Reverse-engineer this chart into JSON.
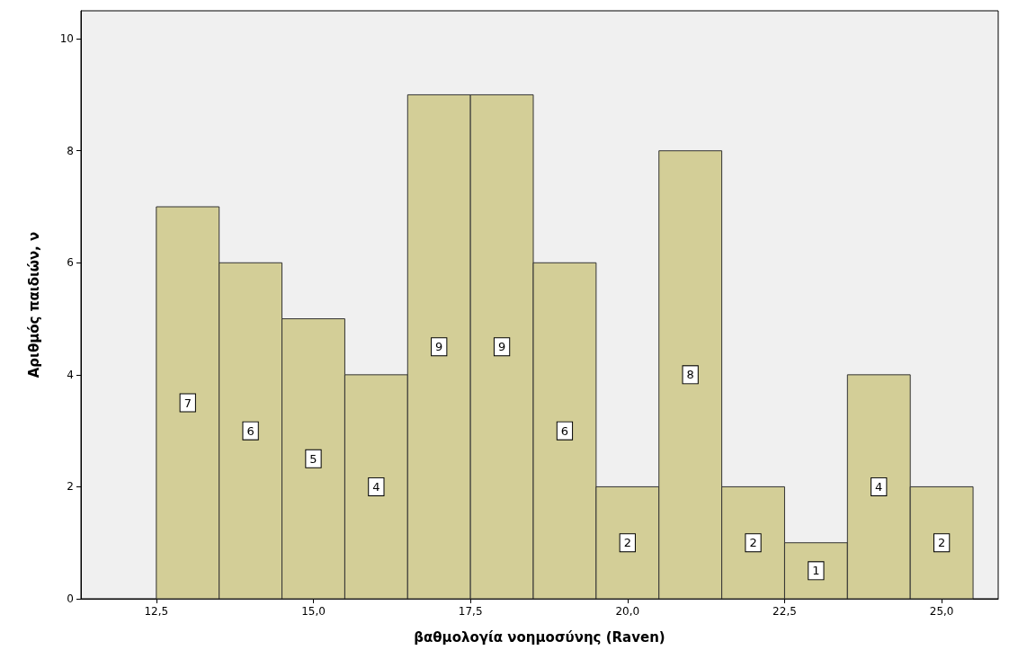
{
  "chart_data": {
    "type": "histogram",
    "xlabel": "βαθμολογία νοημοσύνης (Raven)",
    "ylabel": "Αριθμός παιδιών, ν",
    "bins": [
      12.5,
      13.5,
      14.5,
      15.5,
      16.5,
      17.5,
      18.5,
      19.5,
      20.5,
      21.5,
      22.5,
      23.5,
      24.5,
      25.5
    ],
    "values": [
      7,
      6,
      5,
      4,
      9,
      9,
      6,
      2,
      8,
      2,
      1,
      4,
      2
    ],
    "color": "#d3ce97",
    "xlim": [
      11.3,
      25.9
    ],
    "ylim": [
      0,
      10.5
    ],
    "xticks": [
      {
        "value": 12.5,
        "label": "12,5"
      },
      {
        "value": 15,
        "label": "15,0"
      },
      {
        "value": 17.5,
        "label": "17,5"
      },
      {
        "value": 20,
        "label": "20,0"
      },
      {
        "value": 22.5,
        "label": "22,5"
      },
      {
        "value": 25,
        "label": "25,0"
      }
    ],
    "yticks": [
      0,
      2,
      4,
      6,
      8,
      10
    ],
    "grid": false,
    "data_labels": true
  }
}
